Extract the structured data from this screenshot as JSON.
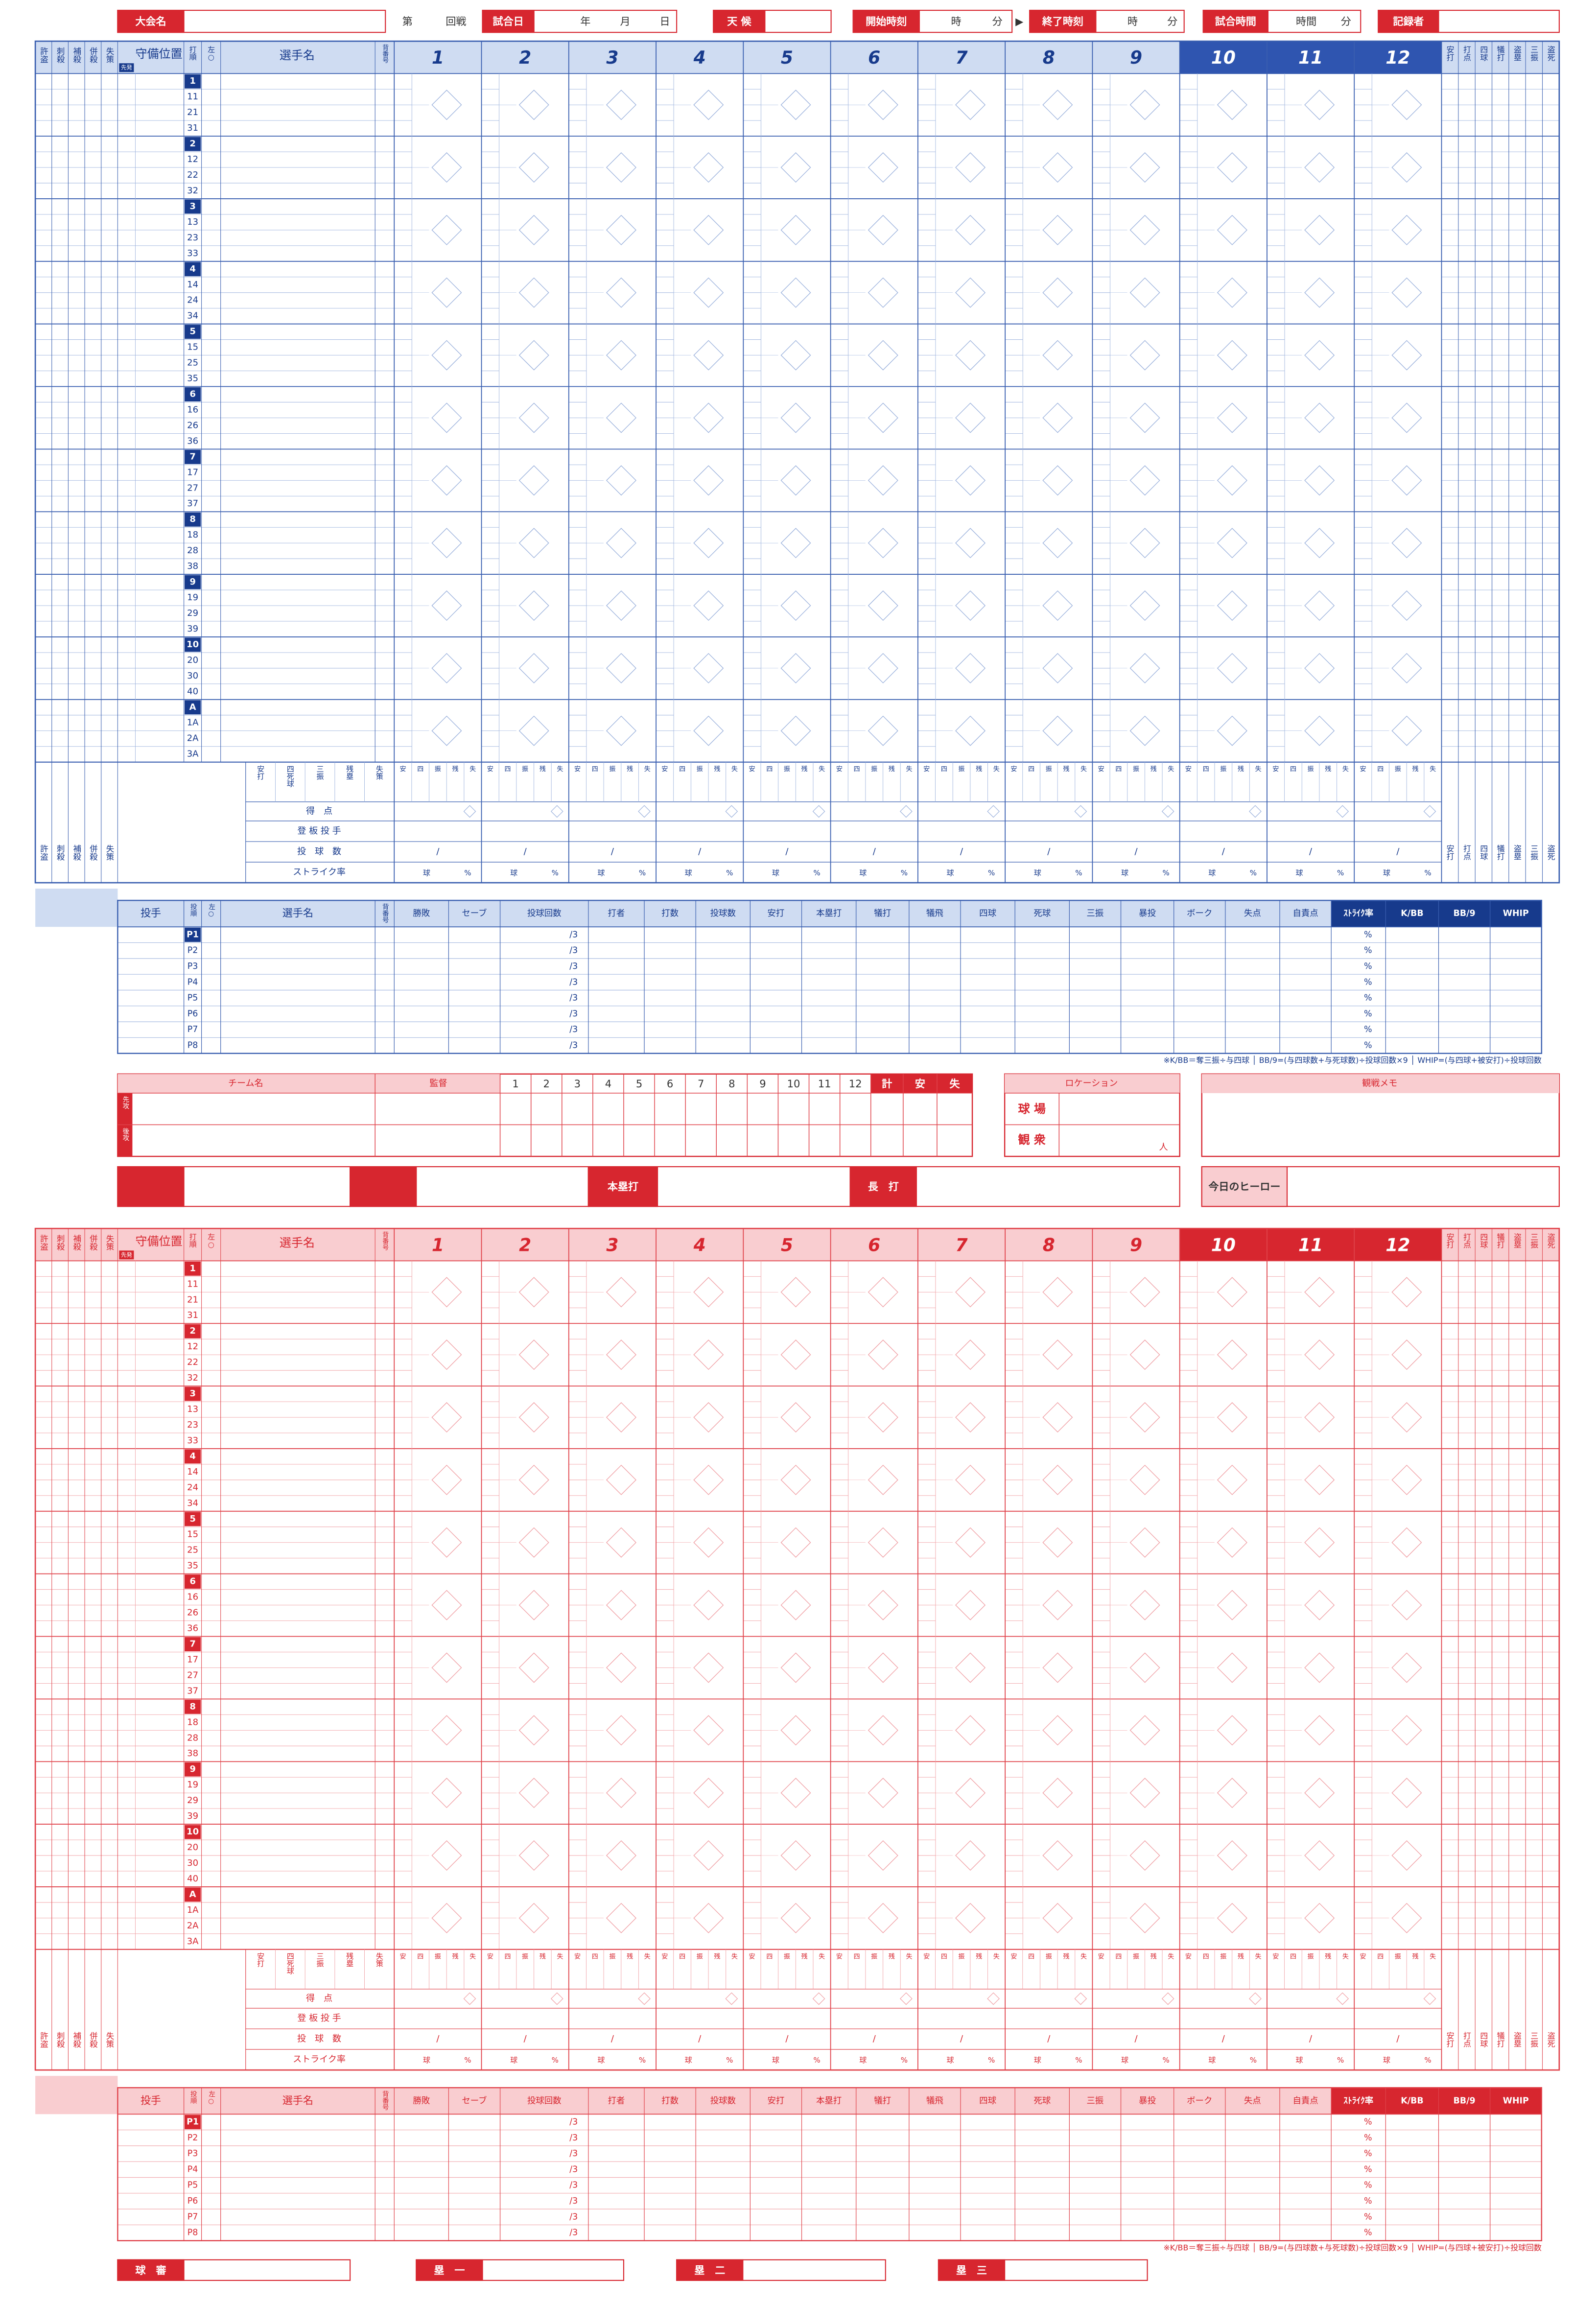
{
  "header": {
    "tournament": "大会名",
    "dai": "第",
    "round": "回戦",
    "date": "試合日",
    "year": "年",
    "month": "月",
    "day": "日",
    "weather": "天 候",
    "start": "開始時刻",
    "hour": "時",
    "minute": "分",
    "arrow": "▶",
    "end": "終了時刻",
    "duration": "試合時間",
    "duration_hour": "時間",
    "recorder": "記録者"
  },
  "scoresheet": {
    "fielding_headers": [
      "許盗",
      "刺殺",
      "補殺",
      "併殺",
      "失策"
    ],
    "position": "守備位置",
    "starter": "先発",
    "order": "打順",
    "lefty": "左○",
    "player": "選手名",
    "number": "背番号",
    "innings": [
      "1",
      "2",
      "3",
      "4",
      "5",
      "6",
      "7",
      "8",
      "9",
      "10",
      "11",
      "12"
    ],
    "batting_headers": [
      "安打",
      "打点",
      "四球",
      "犠打",
      "盗塁",
      "三振",
      "盗死"
    ],
    "slots": [
      [
        "1",
        "11",
        "21",
        "31"
      ],
      [
        "2",
        "12",
        "22",
        "32"
      ],
      [
        "3",
        "13",
        "23",
        "33"
      ],
      [
        "4",
        "14",
        "24",
        "34"
      ],
      [
        "5",
        "15",
        "25",
        "35"
      ],
      [
        "6",
        "16",
        "26",
        "36"
      ],
      [
        "7",
        "17",
        "27",
        "37"
      ],
      [
        "8",
        "18",
        "28",
        "38"
      ],
      [
        "9",
        "19",
        "29",
        "39"
      ],
      [
        "10",
        "20",
        "30",
        "40"
      ],
      [
        "A",
        "1A",
        "2A",
        "3A"
      ]
    ],
    "total_labels": [
      "安打",
      "四死球",
      "三振",
      "残塁",
      "失策"
    ],
    "inning_labels": [
      "安",
      "四",
      "振",
      "残",
      "失"
    ],
    "runs": "得　点",
    "pitcher_row": "登 板 投 手",
    "pitch_count": "投　球　数",
    "strike_rate": "ストライク率",
    "slash": "/",
    "ball": "球",
    "percent": "%"
  },
  "pitching": {
    "headers": [
      "投手",
      "投順",
      "左○",
      "選手名",
      "背番号",
      "勝敗",
      "セーブ",
      "投球回数",
      "打者",
      "打数",
      "投球数",
      "安打",
      "本塁打",
      "犠打",
      "犠飛",
      "四球",
      "死球",
      "三振",
      "暴投",
      "ボーク",
      "失点",
      "自責点",
      "ｽﾄﾗｲｸ率",
      "K/BB",
      "BB/9",
      "WHIP"
    ],
    "pitchers": [
      "P1",
      "P2",
      "P3",
      "P4",
      "P5",
      "P6",
      "P7",
      "P8"
    ],
    "innings_suffix": "/3",
    "percent": "%",
    "note": "※K/BB＝奪三振÷与四球 │ BB/9=(与四球数+与死球数)÷投球回数×9 │ WHIP=(与四球+被安打)÷投球回数"
  },
  "scoreboard": {
    "team": "チーム名",
    "manager": "監督",
    "total": "計",
    "hits": "安",
    "errors": "失",
    "first": "先攻",
    "second": "後攻"
  },
  "location": {
    "title": "ロケーション",
    "stadium": "球 場",
    "crowd": "観 衆",
    "person": "人"
  },
  "memo": "観戦メモ",
  "highlights": {
    "homerun": "本塁打",
    "long_hit": "長　打",
    "hero": "今日のヒーロー"
  },
  "umpires": [
    "球　審",
    "塁　一",
    "塁　二",
    "塁　三"
  ]
}
